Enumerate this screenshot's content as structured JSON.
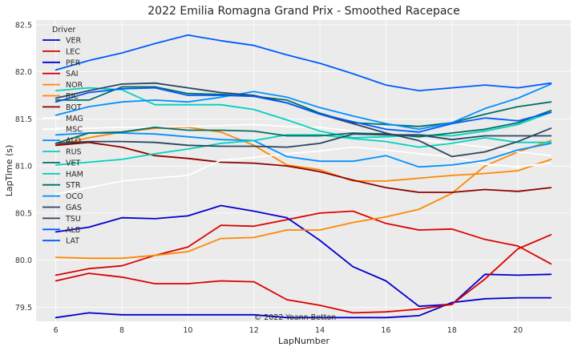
{
  "chart_data": {
    "type": "line",
    "title": "2022 Emilia Romagna Grand Prix - Smoothed Racepace",
    "xlabel": "LapNumber",
    "ylabel": "LapTime (s)",
    "xlim": [
      5.4,
      21.6
    ],
    "ylim": [
      79.35,
      82.55
    ],
    "xticks": [
      6,
      8,
      10,
      12,
      14,
      16,
      18,
      20
    ],
    "yticks": [
      79.5,
      80.0,
      80.5,
      81.0,
      81.5,
      82.0,
      82.5
    ],
    "grid": true,
    "legend_title": "Driver",
    "legend_position": "top-left",
    "annotation": "© 2022 Yoann Betton",
    "x": [
      6,
      7,
      8,
      9,
      10,
      11,
      12,
      13,
      14,
      15,
      16,
      17,
      18,
      19,
      20,
      21
    ],
    "series": [
      {
        "name": "VER",
        "color": "#0000cd",
        "values": [
          79.39,
          79.44,
          79.42,
          79.42,
          79.42,
          79.42,
          79.42,
          79.39,
          79.39,
          79.39,
          79.39,
          79.41,
          79.55,
          79.59,
          79.6,
          79.6
        ]
      },
      {
        "name": "LEC",
        "color": "#dc0000",
        "values": [
          79.84,
          79.91,
          79.94,
          80.05,
          80.14,
          80.37,
          80.36,
          80.43,
          80.5,
          80.52,
          80.39,
          80.32,
          80.33,
          80.22,
          80.15,
          79.96
        ]
      },
      {
        "name": "PER",
        "color": "#0000cd",
        "values": [
          80.3,
          80.35,
          80.45,
          80.44,
          80.47,
          80.58,
          80.52,
          80.45,
          80.21,
          79.93,
          79.78,
          79.51,
          79.53,
          79.85,
          79.84,
          79.85
        ]
      },
      {
        "name": "SAI",
        "color": "#dc0000",
        "values": [
          79.78,
          79.86,
          79.82,
          79.75,
          79.75,
          79.78,
          79.77,
          79.58,
          79.52,
          79.44,
          79.45,
          79.48,
          79.53,
          79.8,
          80.12,
          80.27
        ]
      },
      {
        "name": "NOR",
        "color": "#ff8700",
        "values": [
          80.03,
          80.02,
          80.02,
          80.05,
          80.09,
          80.23,
          80.24,
          80.32,
          80.32,
          80.4,
          80.46,
          80.54,
          80.71,
          81.0,
          81.15,
          81.27
        ]
      },
      {
        "name": "RIC",
        "color": "#ff8700",
        "values": [
          81.22,
          81.3,
          81.36,
          81.4,
          81.41,
          81.36,
          81.22,
          81.01,
          80.96,
          80.84,
          80.84,
          80.87,
          80.9,
          80.92,
          80.95,
          81.07
        ]
      },
      {
        "name": "BOT",
        "color": "#900000",
        "values": [
          81.22,
          81.25,
          81.2,
          81.11,
          81.08,
          81.04,
          81.03,
          81.0,
          80.94,
          80.85,
          80.77,
          80.72,
          80.72,
          80.75,
          80.73,
          80.77
        ]
      },
      {
        "name": "MAG",
        "color": "#ffffff",
        "values": [
          80.7,
          80.77,
          80.84,
          80.87,
          80.9,
          81.06,
          81.09,
          81.13,
          81.16,
          81.2,
          81.17,
          81.13,
          81.1,
          81.02,
          80.99,
          81.03
        ]
      },
      {
        "name": "MSC",
        "color": "#ffffff",
        "values": [
          81.4,
          81.4,
          81.41,
          81.41,
          81.42,
          81.43,
          81.44,
          81.42,
          81.41,
          81.37,
          81.33,
          81.28,
          81.24,
          81.2,
          81.15,
          81.11
        ]
      },
      {
        "name": "ALO",
        "color": "#0090ff",
        "values": [
          81.33,
          81.35,
          81.35,
          81.34,
          81.31,
          81.28,
          81.27,
          81.1,
          81.05,
          81.05,
          81.11,
          80.99,
          81.01,
          81.06,
          81.17,
          81.24
        ]
      },
      {
        "name": "RUS",
        "color": "#00d2be",
        "values": [
          81.01,
          81.04,
          81.07,
          81.13,
          81.18,
          81.24,
          81.27,
          81.33,
          81.33,
          81.29,
          81.26,
          81.2,
          81.24,
          81.3,
          81.25,
          81.25
        ]
      },
      {
        "name": "VET",
        "color": "#006f62",
        "values": [
          81.7,
          81.7,
          81.84,
          81.84,
          81.77,
          81.76,
          81.74,
          81.7,
          81.56,
          81.46,
          81.44,
          81.42,
          81.46,
          81.55,
          81.63,
          81.68
        ]
      },
      {
        "name": "HAM",
        "color": "#00d2be",
        "values": [
          81.8,
          81.83,
          81.81,
          81.65,
          81.65,
          81.65,
          81.6,
          81.49,
          81.37,
          81.3,
          81.31,
          81.33,
          81.32,
          81.37,
          81.44,
          81.57
        ]
      },
      {
        "name": "STR",
        "color": "#006f62",
        "values": [
          81.24,
          81.35,
          81.36,
          81.41,
          81.38,
          81.38,
          81.37,
          81.32,
          81.32,
          81.35,
          81.34,
          81.31,
          81.35,
          81.39,
          81.46,
          81.59
        ]
      },
      {
        "name": "OCO",
        "color": "#0090ff",
        "values": [
          81.54,
          81.63,
          81.68,
          81.7,
          81.68,
          81.73,
          81.79,
          81.73,
          81.62,
          81.53,
          81.45,
          81.39,
          81.46,
          81.61,
          81.72,
          81.87
        ]
      },
      {
        "name": "GAS",
        "color": "#2b4562",
        "values": [
          81.72,
          81.8,
          81.87,
          81.88,
          81.83,
          81.78,
          81.75,
          81.67,
          81.55,
          81.45,
          81.35,
          81.27,
          81.1,
          81.15,
          81.26,
          81.4
        ]
      },
      {
        "name": "TSU",
        "color": "#2b4562",
        "values": [
          81.24,
          81.26,
          81.26,
          81.25,
          81.22,
          81.21,
          81.21,
          81.2,
          81.24,
          81.34,
          81.33,
          81.33,
          81.28,
          81.32,
          81.32,
          81.32
        ]
      },
      {
        "name": "ALB",
        "color": "#005aff",
        "values": [
          82.02,
          82.12,
          82.2,
          82.3,
          82.39,
          82.33,
          82.28,
          82.18,
          82.09,
          81.98,
          81.86,
          81.8,
          81.83,
          81.86,
          81.83,
          81.88
        ]
      },
      {
        "name": "LAT",
        "color": "#005aff",
        "values": [
          81.68,
          81.78,
          81.82,
          81.83,
          81.75,
          81.75,
          81.74,
          81.67,
          81.55,
          81.47,
          81.39,
          81.36,
          81.45,
          81.51,
          81.48,
          81.57
        ]
      }
    ]
  }
}
